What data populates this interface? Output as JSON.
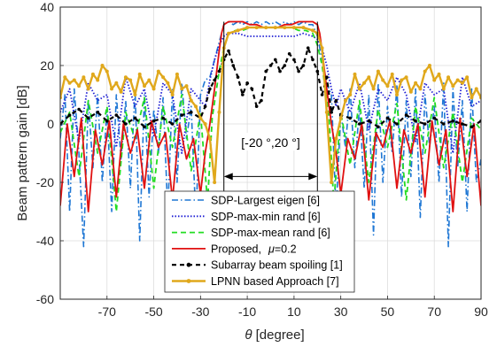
{
  "chart_data": {
    "type": "line",
    "title": "",
    "xlabel_symbol": "θ",
    "xlabel_text": " [degree]",
    "ylabel": "Beam pattern gain [dB]",
    "xlim": [
      -90,
      90
    ],
    "ylim": [
      -60,
      40
    ],
    "xticks": [
      -70,
      -50,
      -30,
      -10,
      10,
      30,
      50,
      70,
      90
    ],
    "yticks": [
      -60,
      -40,
      -20,
      0,
      20,
      40
    ],
    "grid": true,
    "legend_position": "bottom-center",
    "annotation": {
      "label": "[-20 °,20 °]",
      "x_range": [
        -20,
        20
      ],
      "y": -7
    },
    "series": [
      {
        "name": "SDP-Largest eigen [6]",
        "color": "#1f77d4",
        "style": "dashdot",
        "width": 1.6,
        "x": [
          -90,
          -88,
          -86,
          -84,
          -82,
          -80,
          -78,
          -76,
          -74,
          -72,
          -70,
          -68,
          -66,
          -64,
          -62,
          -60,
          -58,
          -56,
          -54,
          -52,
          -50,
          -48,
          -46,
          -44,
          -42,
          -40,
          -38,
          -36,
          -34,
          -32,
          -30,
          -28,
          -26,
          -24,
          -22,
          -20,
          -18,
          -16,
          -14,
          -12,
          -10,
          -8,
          -6,
          -4,
          -2,
          0,
          2,
          4,
          6,
          8,
          10,
          12,
          14,
          16,
          18,
          20,
          22,
          24,
          26,
          28,
          30,
          32,
          34,
          36,
          38,
          40,
          42,
          44,
          46,
          48,
          50,
          52,
          54,
          56,
          58,
          60,
          62,
          64,
          66,
          68,
          70,
          72,
          74,
          76,
          78,
          80,
          82,
          84,
          86,
          88,
          90
        ],
        "y": [
          -5,
          10,
          -30,
          12,
          -10,
          -42,
          8,
          -15,
          10,
          -20,
          5,
          -30,
          10,
          -12,
          8,
          -22,
          12,
          -40,
          10,
          -25,
          5,
          -10,
          9,
          -30,
          12,
          -20,
          14,
          -5,
          6,
          -33,
          10,
          15,
          16,
          22,
          28,
          34,
          35,
          34,
          35,
          34,
          35,
          34,
          35,
          34,
          35,
          34,
          35,
          34,
          35,
          34,
          35,
          34,
          35,
          34,
          34,
          30,
          22,
          14,
          10,
          -30,
          4,
          -8,
          12,
          -15,
          6,
          -22,
          10,
          -38,
          14,
          -20,
          6,
          -10,
          13,
          -25,
          8,
          -18,
          12,
          -32,
          10,
          -8,
          6,
          -20,
          14,
          -42,
          12,
          -15,
          8,
          -30,
          12,
          -20,
          -12
        ]
      },
      {
        "name": "SDP-max-min rand [6]",
        "color": "#1f1fd4",
        "style": "dotted",
        "width": 1.8,
        "x": [
          -90,
          -86,
          -82,
          -78,
          -74,
          -70,
          -66,
          -62,
          -58,
          -54,
          -50,
          -46,
          -42,
          -38,
          -34,
          -30,
          -28,
          -26,
          -24,
          -22,
          -20,
          -18,
          -14,
          -10,
          -6,
          -2,
          2,
          6,
          10,
          14,
          18,
          20,
          22,
          24,
          26,
          28,
          30,
          34,
          38,
          42,
          46,
          50,
          54,
          58,
          62,
          66,
          70,
          74,
          78,
          82,
          86,
          90
        ],
        "y": [
          4,
          12,
          -6,
          14,
          8,
          10,
          -8,
          16,
          6,
          12,
          -4,
          14,
          10,
          -10,
          12,
          8,
          6,
          15,
          22,
          27,
          30,
          31,
          31,
          30,
          30,
          30,
          30,
          30,
          30,
          31,
          30,
          29,
          26,
          20,
          12,
          6,
          12,
          4,
          14,
          -2,
          12,
          8,
          16,
          10,
          -6,
          14,
          10,
          12,
          -10,
          16,
          6,
          8
        ]
      },
      {
        "name": "SDP-max-mean rand [6]",
        "color": "#22dd22",
        "style": "dashed",
        "width": 1.8,
        "x": [
          -90,
          -86,
          -82,
          -78,
          -74,
          -70,
          -66,
          -62,
          -58,
          -54,
          -50,
          -46,
          -42,
          -38,
          -34,
          -30,
          -27,
          -25,
          -22,
          -20,
          -18,
          -15,
          -12,
          -9,
          -6,
          -3,
          0,
          3,
          6,
          9,
          12,
          15,
          18,
          20,
          22,
          25,
          27,
          30,
          34,
          38,
          42,
          46,
          50,
          54,
          58,
          62,
          66,
          70,
          74,
          78,
          82,
          86,
          90
        ],
        "y": [
          -3,
          4,
          -18,
          8,
          -10,
          6,
          -30,
          4,
          -5,
          9,
          -22,
          6,
          -8,
          10,
          -16,
          4,
          -27,
          2,
          18,
          26,
          31,
          32,
          32,
          33,
          33,
          33,
          33,
          33,
          33,
          33,
          32,
          32,
          31,
          27,
          20,
          2,
          -27,
          4,
          -14,
          8,
          -20,
          5,
          -8,
          7,
          -26,
          6,
          -10,
          9,
          -15,
          4,
          -20,
          2,
          -2
        ]
      },
      {
        "name": "Proposed,",
        "mu_symbol": "μ",
        "mu_value": "=0.2",
        "color": "#e01010",
        "style": "solid",
        "width": 1.8,
        "x": [
          -90,
          -87,
          -84,
          -81,
          -78,
          -75,
          -72,
          -69,
          -66,
          -63,
          -60,
          -57,
          -54,
          -51,
          -48,
          -45,
          -42,
          -39,
          -36,
          -33,
          -30,
          -28,
          -26,
          -24,
          -22,
          -21,
          -20,
          -18,
          -15,
          -12,
          -9,
          -6,
          -3,
          0,
          3,
          6,
          9,
          12,
          15,
          18,
          20,
          21,
          22,
          24,
          26,
          28,
          30,
          33,
          36,
          39,
          42,
          45,
          48,
          51,
          54,
          57,
          60,
          63,
          66,
          69,
          72,
          75,
          78,
          81,
          84,
          87,
          90
        ],
        "y": [
          -28,
          0,
          -18,
          2,
          -30,
          -2,
          -14,
          1,
          -25,
          0,
          -10,
          -2,
          -22,
          1,
          -8,
          -3,
          -26,
          0,
          -12,
          -5,
          -24,
          -10,
          0,
          12,
          25,
          31,
          34,
          35,
          35,
          35,
          34,
          34,
          33,
          33,
          33,
          34,
          34,
          35,
          35,
          35,
          34,
          31,
          25,
          12,
          0,
          -10,
          -24,
          -5,
          -12,
          0,
          -26,
          -3,
          -8,
          1,
          -22,
          -2,
          -10,
          0,
          -25,
          1,
          -14,
          -2,
          -30,
          2,
          -18,
          0,
          -28
        ]
      },
      {
        "name": "Subarray beam spoiling [1]",
        "color": "#000000",
        "style": "dashed-dotmarks",
        "width": 2.2,
        "x": [
          -90,
          -86,
          -82,
          -78,
          -74,
          -70,
          -66,
          -62,
          -58,
          -54,
          -50,
          -46,
          -42,
          -38,
          -34,
          -30,
          -28,
          -26,
          -24,
          -22,
          -20,
          -18,
          -16,
          -14,
          -12,
          -10,
          -8,
          -6,
          -4,
          -2,
          0,
          2,
          4,
          6,
          8,
          10,
          12,
          14,
          16,
          18,
          20,
          22,
          24,
          26,
          28,
          30,
          34,
          38,
          42,
          46,
          50,
          54,
          58,
          62,
          66,
          70,
          74,
          78,
          82,
          86,
          90
        ],
        "y": [
          0,
          3,
          5,
          2,
          4,
          1,
          3,
          0,
          2,
          -1,
          1,
          2,
          0,
          3,
          4,
          2,
          6,
          12,
          15,
          18,
          22,
          25,
          20,
          16,
          10,
          14,
          12,
          6,
          8,
          18,
          20,
          22,
          18,
          20,
          24,
          22,
          18,
          20,
          26,
          22,
          18,
          10,
          16,
          4,
          8,
          3,
          2,
          0,
          1,
          -1,
          2,
          0,
          3,
          1,
          0,
          2,
          0,
          1,
          0,
          -1,
          1
        ]
      },
      {
        "name": "LPNN based Approach [7]",
        "color": "#e0a81c",
        "style": "solid-markers",
        "width": 2.4,
        "x": [
          -90,
          -88,
          -86,
          -84,
          -82,
          -80,
          -78,
          -76,
          -74,
          -72,
          -70,
          -68,
          -66,
          -64,
          -62,
          -60,
          -58,
          -56,
          -54,
          -52,
          -50,
          -48,
          -46,
          -44,
          -42,
          -40,
          -38,
          -36,
          -34,
          -32,
          -30,
          -28,
          -26,
          -24,
          -22,
          -20,
          -18,
          -14,
          -10,
          -6,
          -2,
          2,
          6,
          10,
          14,
          18,
          20,
          22,
          24,
          26,
          28,
          30,
          32,
          34,
          36,
          38,
          40,
          42,
          44,
          46,
          48,
          50,
          52,
          54,
          56,
          58,
          60,
          62,
          64,
          66,
          68,
          70,
          72,
          74,
          76,
          78,
          80,
          82,
          84,
          86,
          88,
          90
        ],
        "y": [
          9,
          16,
          14,
          15,
          13,
          16,
          12,
          17,
          15,
          20,
          18,
          12,
          14,
          11,
          16,
          15,
          10,
          17,
          13,
          15,
          12,
          18,
          16,
          14,
          10,
          17,
          12,
          13,
          8,
          6,
          2,
          0,
          -5,
          -20,
          4,
          26,
          31,
          32,
          33,
          33,
          33,
          33,
          33,
          33,
          33,
          32,
          31,
          26,
          4,
          -20,
          -5,
          2,
          8,
          10,
          17,
          12,
          14,
          16,
          12,
          18,
          15,
          13,
          17,
          10,
          15,
          16,
          11,
          14,
          12,
          18,
          20,
          15,
          17,
          12,
          16,
          13,
          15,
          14,
          16,
          9,
          12,
          9
        ]
      }
    ]
  }
}
